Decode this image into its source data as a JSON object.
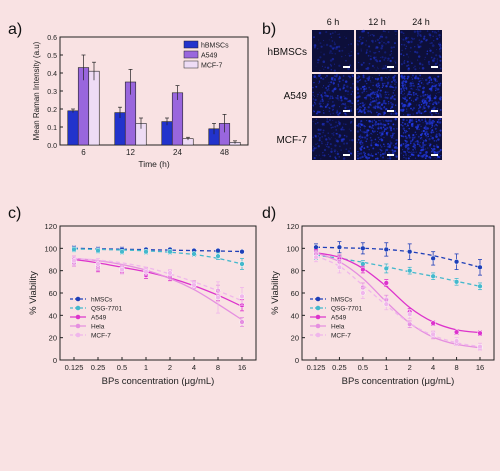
{
  "colors": {
    "background": "#f9e2e3",
    "hbmsc": "#2233cc",
    "a549": "#9966dd",
    "mcf7": "#eedcf5",
    "hmsc_line": "#1f3fb8",
    "qsg": "#44b8cc",
    "a549_line": "#dd33cc",
    "hela": "#e58fe0",
    "mcf7_line": "#f0b6ec",
    "cell_image_bg": "#0d0f3a"
  },
  "panel_labels": {
    "a": "a)",
    "b": "b)",
    "c": "c)",
    "d": "d)"
  },
  "panel_b": {
    "columns": [
      "6 h",
      "12 h",
      "24 h"
    ],
    "rows": [
      "hBMSCs",
      "A549",
      "MCF-7"
    ],
    "intensity": [
      [
        0.15,
        0.3,
        0.35
      ],
      [
        0.55,
        0.7,
        0.8
      ],
      [
        0.35,
        0.75,
        0.85
      ]
    ]
  },
  "chart_data": [
    {
      "type": "bar",
      "panel": "a",
      "xlabel": "Time (h)",
      "ylabel": "Mean Raman Intensity (a.u)",
      "categories": [
        "6",
        "12",
        "24",
        "48"
      ],
      "ylim": [
        0,
        0.6
      ],
      "yticks": [
        "0.0",
        "0.1",
        "0.2",
        "0.3",
        "0.4",
        "0.5",
        "0.6"
      ],
      "legend_position": "top-right",
      "series": [
        {
          "name": "hBMSCs",
          "values": [
            0.19,
            0.18,
            0.13,
            0.09
          ],
          "errors": [
            0.01,
            0.03,
            0.02,
            0.03
          ]
        },
        {
          "name": "A549",
          "values": [
            0.43,
            0.35,
            0.29,
            0.12
          ],
          "errors": [
            0.07,
            0.07,
            0.04,
            0.05
          ]
        },
        {
          "name": "MCF-7",
          "values": [
            0.41,
            0.12,
            0.035,
            0.015
          ],
          "errors": [
            0.05,
            0.03,
            0.008,
            0.008
          ]
        }
      ]
    },
    {
      "type": "scatter",
      "panel": "c",
      "xlabel": "BPs concentration (μg/mL)",
      "ylabel": "% Viability",
      "x": [
        0.125,
        0.25,
        0.5,
        1,
        2,
        4,
        8,
        16
      ],
      "xtick_labels": [
        "0.125",
        "0.25",
        "0.5",
        "1",
        "2",
        "4",
        "8",
        "16"
      ],
      "ylim": [
        0,
        120
      ],
      "yticks": [
        "0",
        "20",
        "40",
        "60",
        "80",
        "100",
        "120"
      ],
      "legend_position": "bottom-left",
      "series": [
        {
          "name": "hMSCs",
          "values": [
            100,
            99,
            99,
            99,
            99,
            98,
            98,
            97
          ],
          "errors": [
            2,
            2,
            2,
            1,
            1,
            1,
            1,
            1
          ],
          "fit": [
            100,
            99.6,
            99.2,
            98.8,
            98.4,
            98,
            97.6,
            97.2
          ],
          "dash": true
        },
        {
          "name": "QSG-7701",
          "values": [
            99,
            98,
            97,
            97,
            97,
            95,
            93,
            86
          ],
          "errors": [
            2,
            2,
            2,
            2,
            2,
            2,
            3,
            5
          ],
          "fit": [
            99.5,
            99,
            98.5,
            97.8,
            96.5,
            94.5,
            91,
            86
          ],
          "dash": true
        },
        {
          "name": "A549",
          "values": [
            90,
            83,
            81,
            76,
            74,
            67,
            57,
            49
          ],
          "errors": [
            3,
            4,
            3,
            3,
            3,
            3,
            4,
            5
          ],
          "fit": [
            90,
            87,
            83,
            79,
            73.5,
            66.5,
            58,
            48
          ],
          "dash": false
        },
        {
          "name": "Hela",
          "values": [
            87,
            84,
            82,
            80,
            77,
            68,
            62,
            34
          ],
          "errors": [
            3,
            4,
            3,
            3,
            3,
            3,
            5,
            4
          ],
          "fit": [
            91,
            89,
            85.5,
            80.5,
            73,
            63,
            50,
            36
          ],
          "dash": false
        },
        {
          "name": "MCF-7",
          "values": [
            89,
            86,
            81,
            79,
            78,
            67,
            56,
            57
          ],
          "errors": [
            4,
            5,
            4,
            3,
            3,
            3,
            14,
            8
          ],
          "fit": [
            91,
            89.5,
            87,
            83,
            77,
            70,
            62,
            53
          ],
          "dash": true
        }
      ]
    },
    {
      "type": "scatter",
      "panel": "d",
      "xlabel": "BPs concentration (μg/mL)",
      "ylabel": "% Viability",
      "x": [
        0.125,
        0.25,
        0.5,
        1,
        2,
        4,
        8,
        16
      ],
      "xtick_labels": [
        "0.125",
        "0.25",
        "0.5",
        "1",
        "2",
        "4",
        "8",
        "16"
      ],
      "ylim": [
        0,
        120
      ],
      "yticks": [
        "0",
        "20",
        "40",
        "60",
        "80",
        "100",
        "120"
      ],
      "legend_position": "bottom-left",
      "series": [
        {
          "name": "hMSCs",
          "values": [
            101,
            101,
            100,
            99,
            97,
            91,
            88,
            83
          ],
          "errors": [
            3,
            5,
            5,
            6,
            7,
            6,
            7,
            7
          ],
          "fit": [
            101,
            100.5,
            100,
            99,
            97,
            93.5,
            88.5,
            83
          ],
          "dash": true
        },
        {
          "name": "QSG-7701",
          "values": [
            93,
            90,
            86,
            82,
            80,
            75,
            70,
            66
          ],
          "errors": [
            3,
            3,
            3,
            4,
            3,
            3,
            3,
            3
          ],
          "fit": [
            94,
            91,
            87.5,
            83.5,
            79,
            75,
            70.5,
            66
          ],
          "dash": true
        },
        {
          "name": "A549",
          "values": [
            96,
            91,
            81,
            69,
            43,
            33,
            25,
            24
          ],
          "errors": [
            3,
            3,
            3,
            3,
            3,
            2,
            2,
            2
          ],
          "fit": [
            96,
            92,
            82,
            66,
            47,
            34,
            27,
            24.5
          ],
          "dash": false
        },
        {
          "name": "Hela",
          "values": [
            95,
            88,
            65,
            54,
            32,
            22,
            15,
            11
          ],
          "errors": [
            3,
            4,
            4,
            4,
            3,
            3,
            2,
            2
          ],
          "fit": [
            96,
            88,
            73,
            52,
            33,
            20.5,
            14,
            11
          ],
          "dash": false
        },
        {
          "name": "MCF-7",
          "values": [
            92,
            83,
            60,
            50,
            41,
            23,
            17,
            12
          ],
          "errors": [
            4,
            5,
            5,
            5,
            4,
            3,
            3,
            3
          ],
          "fit": [
            93,
            84,
            67,
            49,
            33,
            22,
            15.5,
            12
          ],
          "dash": true
        }
      ]
    }
  ]
}
